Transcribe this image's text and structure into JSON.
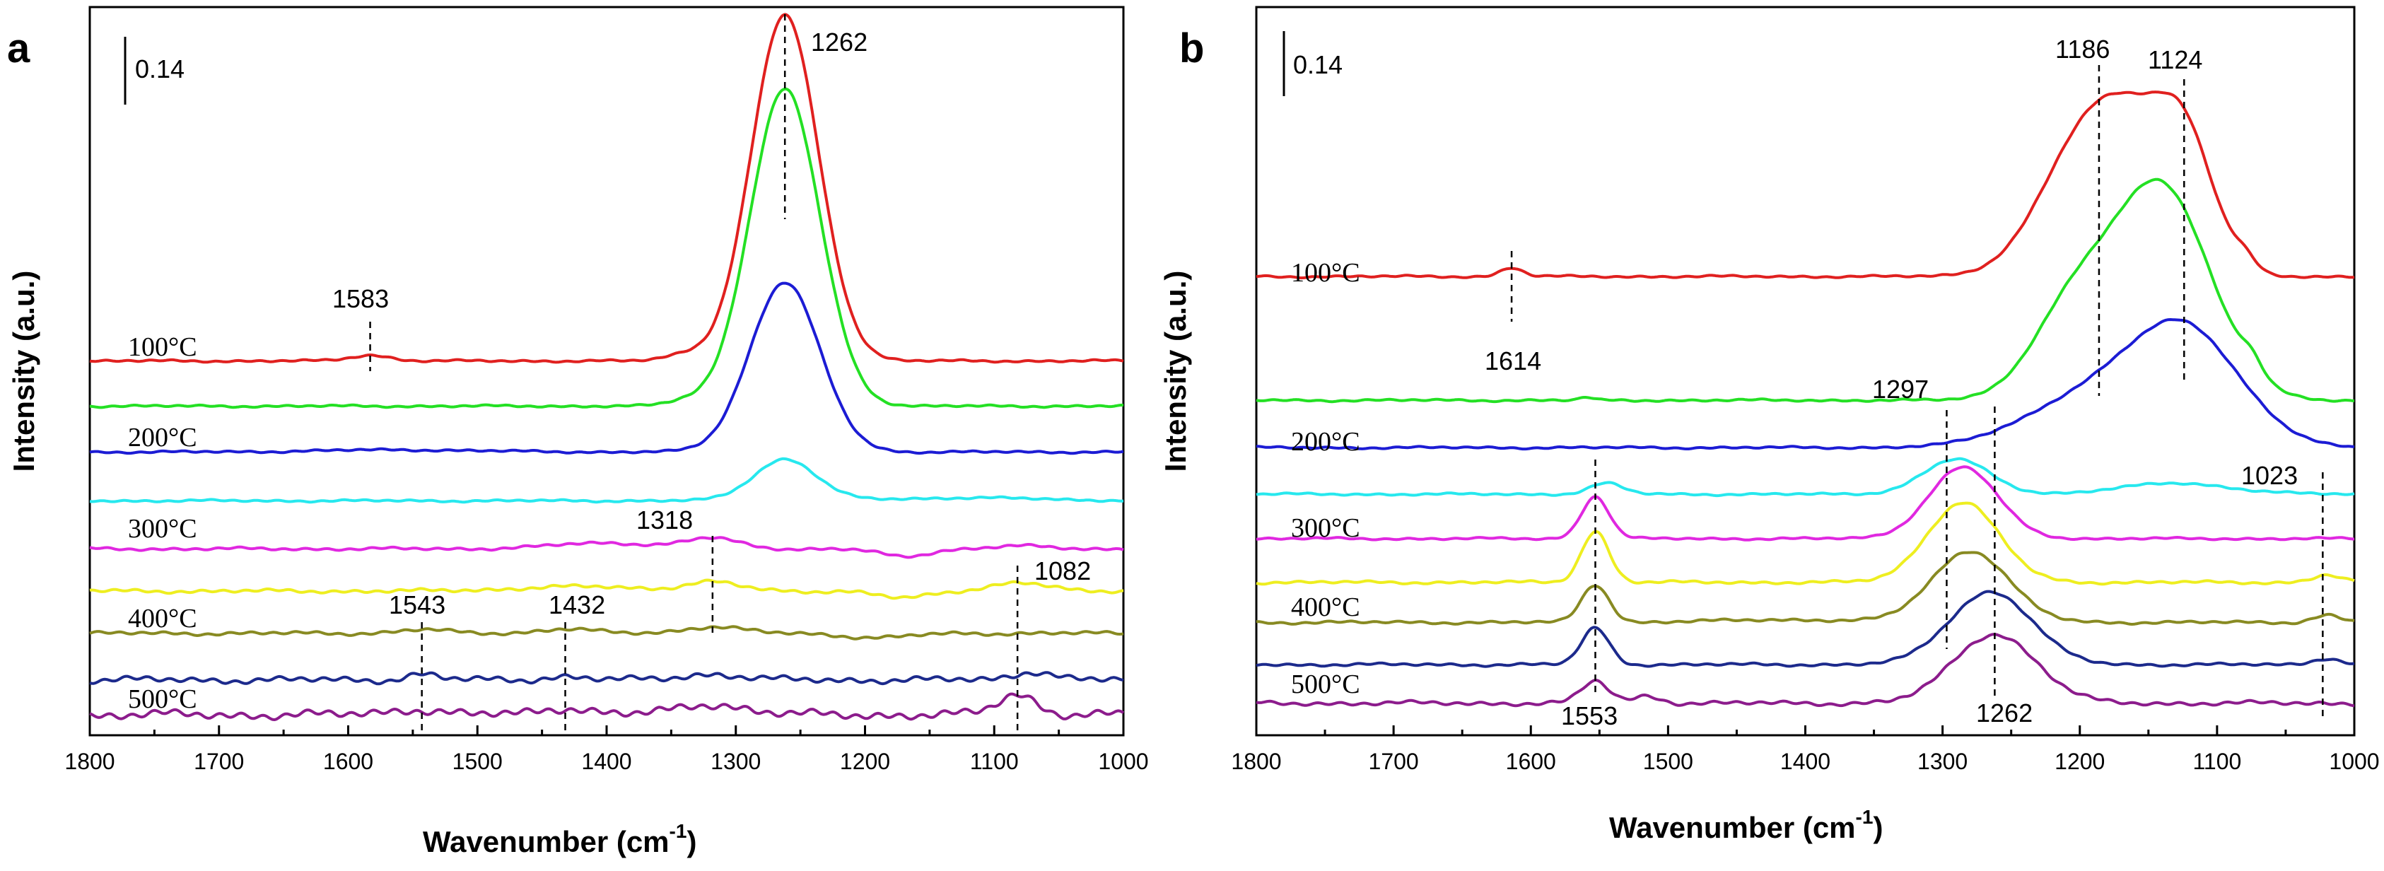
{
  "chart_data": [
    {
      "type": "line",
      "panel": "a",
      "xlabel_main": "Wavenumber (cm",
      "xlabel_sup": "-1",
      "xlabel_close": ")",
      "ylabel": "Intensity (a.u.)",
      "xlim": [
        1800,
        1000
      ],
      "xticks": [
        1800,
        1700,
        1600,
        1500,
        1400,
        1300,
        1200,
        1100,
        1000
      ],
      "ylim": [
        0,
        1.0
      ],
      "scale_bar": {
        "label": "0.14",
        "value": 0.14
      },
      "series": [
        {
          "name": "100°C",
          "color": "#e0201f",
          "baseline": 0.514,
          "peaks": [
            {
              "x": 1262,
              "h": 0.475,
              "w": 26
            },
            {
              "x": 1583,
              "h": 0.008,
              "w": 15
            },
            {
              "x": 1340,
              "h": 0.008,
              "w": 15
            }
          ],
          "noise": 0.0015
        },
        {
          "name": "",
          "color": "#24e024",
          "baseline": 0.452,
          "peaks": [
            {
              "x": 1262,
              "h": 0.435,
              "w": 27
            },
            {
              "x": 1340,
              "h": 0.006,
              "w": 14
            }
          ],
          "noise": 0.0015
        },
        {
          "name": "200°C",
          "color": "#1c1cd4",
          "baseline": 0.389,
          "peaks": [
            {
              "x": 1262,
              "h": 0.233,
              "w": 27
            },
            {
              "x": 1560,
              "h": 0.003,
              "w": 60
            }
          ],
          "noise": 0.0015
        },
        {
          "name": "",
          "color": "#27e8ee",
          "baseline": 0.322,
          "peaks": [
            {
              "x": 1262,
              "h": 0.057,
              "w": 24
            },
            {
              "x": 1120,
              "h": 0.004,
              "w": 60
            }
          ],
          "noise": 0.0015
        },
        {
          "name": "300°C",
          "color": "#e028e0",
          "baseline": 0.256,
          "peaks": [
            {
              "x": 1318,
              "h": 0.014,
              "w": 20
            },
            {
              "x": 1400,
              "h": 0.008,
              "w": 40
            },
            {
              "x": 1170,
              "h": -0.011,
              "w": 18
            },
            {
              "x": 1082,
              "h": 0.004,
              "w": 20
            }
          ],
          "noise": 0.002
        },
        {
          "name": "",
          "color": "#eeee20",
          "baseline": 0.198,
          "peaks": [
            {
              "x": 1318,
              "h": 0.012,
              "w": 20
            },
            {
              "x": 1420,
              "h": 0.006,
              "w": 50
            },
            {
              "x": 1170,
              "h": -0.01,
              "w": 18
            },
            {
              "x": 1082,
              "h": 0.012,
              "w": 20
            }
          ],
          "noise": 0.0025
        },
        {
          "name": "400°C",
          "color": "#888a22",
          "baseline": 0.14,
          "peaks": [
            {
              "x": 1318,
              "h": 0.009,
              "w": 22
            },
            {
              "x": 1432,
              "h": 0.006,
              "w": 20
            },
            {
              "x": 1543,
              "h": 0.005,
              "w": 18
            },
            {
              "x": 1190,
              "h": -0.006,
              "w": 25
            }
          ],
          "noise": 0.0025
        },
        {
          "name": "",
          "color": "#1c2a8c",
          "baseline": 0.076,
          "peaks": [
            {
              "x": 1320,
              "h": 0.008,
              "w": 22
            },
            {
              "x": 1543,
              "h": 0.008,
              "w": 12
            },
            {
              "x": 1432,
              "h": 0.005,
              "w": 15
            },
            {
              "x": 1070,
              "h": 0.012,
              "w": 15
            }
          ],
          "noise": 0.0045
        },
        {
          "name": "500°C",
          "color": "#8c1c8c",
          "baseline": 0.028,
          "peaks": [
            {
              "x": 1318,
              "h": 0.015,
              "w": 25
            },
            {
              "x": 1432,
              "h": 0.01,
              "w": 20
            },
            {
              "x": 1082,
              "h": 0.028,
              "w": 15
            },
            {
              "x": 1550,
              "h": 0.008,
              "w": 20
            }
          ],
          "noise": 0.006
        }
      ],
      "annotations": [
        {
          "text": "1262",
          "x": 1262
        },
        {
          "text": "1583",
          "x": 1583
        },
        {
          "text": "1318",
          "x": 1318
        },
        {
          "text": "1082",
          "x": 1082
        },
        {
          "text": "1543",
          "x": 1543
        },
        {
          "text": "1432",
          "x": 1432
        }
      ]
    },
    {
      "type": "line",
      "panel": "b",
      "xlabel_main": "Wavenumber (cm",
      "xlabel_sup": "-1",
      "xlabel_close": ")",
      "ylabel": "Intensity (a.u.)",
      "xlim": [
        1800,
        1000
      ],
      "xticks": [
        1800,
        1700,
        1600,
        1500,
        1400,
        1300,
        1200,
        1100,
        1000
      ],
      "ylim": [
        0,
        1.0
      ],
      "scale_bar": {
        "label": "0.14",
        "value": 0.14
      },
      "series": [
        {
          "name": "100°C",
          "color": "#e0201f",
          "baseline": 0.63,
          "peaks": [
            {
              "x": 1190,
              "h": 0.21,
              "w": 35
            },
            {
              "x": 1124,
              "h": 0.18,
              "w": 22
            },
            {
              "x": 1160,
              "h": 0.06,
              "w": 22
            },
            {
              "x": 1614,
              "h": 0.012,
              "w": 8
            },
            {
              "x": 1080,
              "h": 0.015,
              "w": 8
            }
          ],
          "noise": 0.0015
        },
        {
          "name": "",
          "color": "#24e024",
          "baseline": 0.46,
          "peaks": [
            {
              "x": 1140,
              "h": 0.29,
              "w": 35
            },
            {
              "x": 1205,
              "h": 0.12,
              "w": 30
            },
            {
              "x": 1075,
              "h": 0.02,
              "w": 8
            },
            {
              "x": 1560,
              "h": 0.004,
              "w": 4
            }
          ],
          "noise": 0.0015
        },
        {
          "name": "200°C",
          "color": "#1c1cd4",
          "baseline": 0.395,
          "peaks": [
            {
              "x": 1124,
              "h": 0.16,
              "w": 40
            },
            {
              "x": 1200,
              "h": 0.06,
              "w": 45
            }
          ],
          "noise": 0.0015
        },
        {
          "name": "",
          "color": "#27e8ee",
          "baseline": 0.331,
          "peaks": [
            {
              "x": 1290,
              "h": 0.048,
              "w": 24
            },
            {
              "x": 1545,
              "h": 0.015,
              "w": 12
            },
            {
              "x": 1130,
              "h": 0.015,
              "w": 40
            }
          ],
          "noise": 0.0015
        },
        {
          "name": "300°C",
          "color": "#e028e0",
          "baseline": 0.27,
          "peaks": [
            {
              "x": 1285,
              "h": 0.098,
              "w": 25
            },
            {
              "x": 1553,
              "h": 0.058,
              "w": 10
            }
          ],
          "noise": 0.0015
        },
        {
          "name": "",
          "color": "#eeee20",
          "baseline": 0.21,
          "peaks": [
            {
              "x": 1285,
              "h": 0.11,
              "w": 26
            },
            {
              "x": 1553,
              "h": 0.07,
              "w": 10
            },
            {
              "x": 1020,
              "h": 0.01,
              "w": 10
            }
          ],
          "noise": 0.002
        },
        {
          "name": "400°C",
          "color": "#888a22",
          "baseline": 0.155,
          "peaks": [
            {
              "x": 1280,
              "h": 0.098,
              "w": 28
            },
            {
              "x": 1553,
              "h": 0.052,
              "w": 10
            },
            {
              "x": 1420,
              "h": 0.004,
              "w": 40
            },
            {
              "x": 1020,
              "h": 0.01,
              "w": 10
            }
          ],
          "noise": 0.002
        },
        {
          "name": "",
          "color": "#1c2a8c",
          "baseline": 0.097,
          "peaks": [
            {
              "x": 1265,
              "h": 0.1,
              "w": 30
            },
            {
              "x": 1553,
              "h": 0.05,
              "w": 10
            },
            {
              "x": 1020,
              "h": 0.009,
              "w": 10
            }
          ],
          "noise": 0.002
        },
        {
          "name": "500°C",
          "color": "#8c1c8c",
          "baseline": 0.044,
          "peaks": [
            {
              "x": 1262,
              "h": 0.095,
              "w": 30
            },
            {
              "x": 1553,
              "h": 0.03,
              "w": 10
            },
            {
              "x": 1515,
              "h": 0.01,
              "w": 10
            }
          ],
          "noise": 0.003
        }
      ],
      "annotations": [
        {
          "text": "1186",
          "x": 1186
        },
        {
          "text": "1124",
          "x": 1124
        },
        {
          "text": "1614",
          "x": 1614
        },
        {
          "text": "1297",
          "x": 1297
        },
        {
          "text": "1023",
          "x": 1023
        },
        {
          "text": "1553",
          "x": 1553
        },
        {
          "text": "1262",
          "x": 1262
        }
      ]
    }
  ]
}
